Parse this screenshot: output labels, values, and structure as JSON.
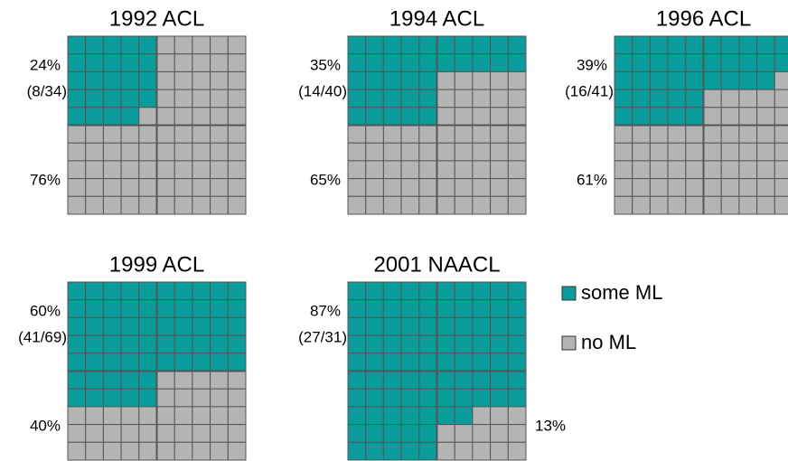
{
  "chart_data": [
    {
      "type": "waffle",
      "title": "1992 ACL",
      "values": [
        24,
        76
      ],
      "value_labels": [
        "24%",
        "76%"
      ],
      "annotation": "(8/34)"
    },
    {
      "type": "waffle",
      "title": "1994 ACL",
      "values": [
        35,
        65
      ],
      "value_labels": [
        "35%",
        "65%"
      ],
      "annotation": "(14/40)"
    },
    {
      "type": "waffle",
      "title": "1996 ACL",
      "values": [
        39,
        61
      ],
      "value_labels": [
        "39%",
        "61%"
      ],
      "annotation": "(16/41)"
    },
    {
      "type": "waffle",
      "title": "1999 ACL",
      "values": [
        60,
        40
      ],
      "value_labels": [
        "60%",
        "40%"
      ],
      "annotation": "(41/69)"
    },
    {
      "type": "waffle",
      "title": "2001 NAACL",
      "values": [
        87,
        13
      ],
      "value_labels": [
        "87%",
        "13%"
      ],
      "annotation": "(27/31)"
    }
  ],
  "legend": [
    {
      "name": "some ML",
      "color": "#0a9b9b"
    },
    {
      "name": "no ML",
      "color": "#b4b4b4"
    }
  ]
}
